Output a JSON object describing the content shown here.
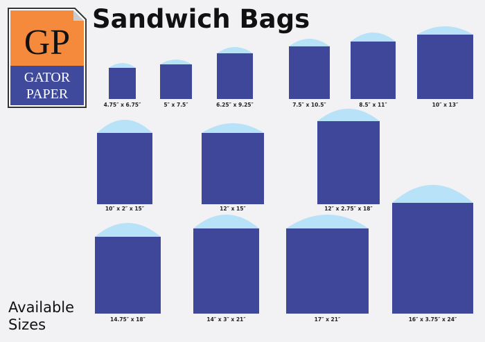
{
  "header": {
    "title": "Sandwich Bags"
  },
  "logo": {
    "monogram": "GP",
    "line1": "GATOR",
    "line2": "PAPER"
  },
  "bags": [
    {
      "label": "4.75″ x 6.75″"
    },
    {
      "label": "5″ x 7.5″"
    },
    {
      "label": "6.25″ x 9.25″"
    },
    {
      "label": "7.5″ x 10.5″"
    },
    {
      "label": "8.5″ x 11″"
    },
    {
      "label": "10″ x 13″"
    },
    {
      "label": "10″ x 2″ x 15″"
    },
    {
      "label": "12″ x 15″"
    },
    {
      "label": "12″ x 2.75″ x 18″"
    },
    {
      "label": "14.75″ x 18″"
    },
    {
      "label": "14″ x 3″ x 21″"
    },
    {
      "label": "17″ x 21″"
    },
    {
      "label": "16″ x 3.75″ x 24″"
    }
  ],
  "footer": {
    "line1": "Available",
    "line2": "Sizes"
  }
}
